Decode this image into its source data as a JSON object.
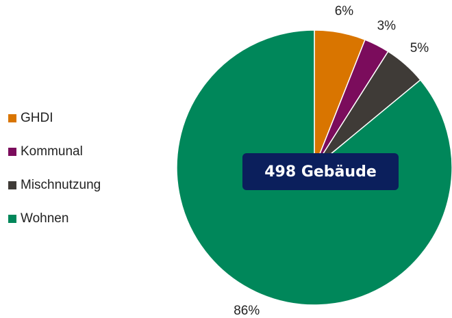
{
  "chart_data": {
    "type": "pie",
    "categories": [
      "GHDI",
      "Kommunal",
      "Mischnutzung",
      "Wohnen"
    ],
    "values": [
      6,
      3,
      5,
      86
    ],
    "value_labels": [
      "6%",
      "3%",
      "5%",
      "86%"
    ],
    "colors": [
      "#d97500",
      "#7b0c5c",
      "#3f3b37",
      "#00875a"
    ],
    "legend": "left",
    "annotation": "498 Gebäude"
  }
}
